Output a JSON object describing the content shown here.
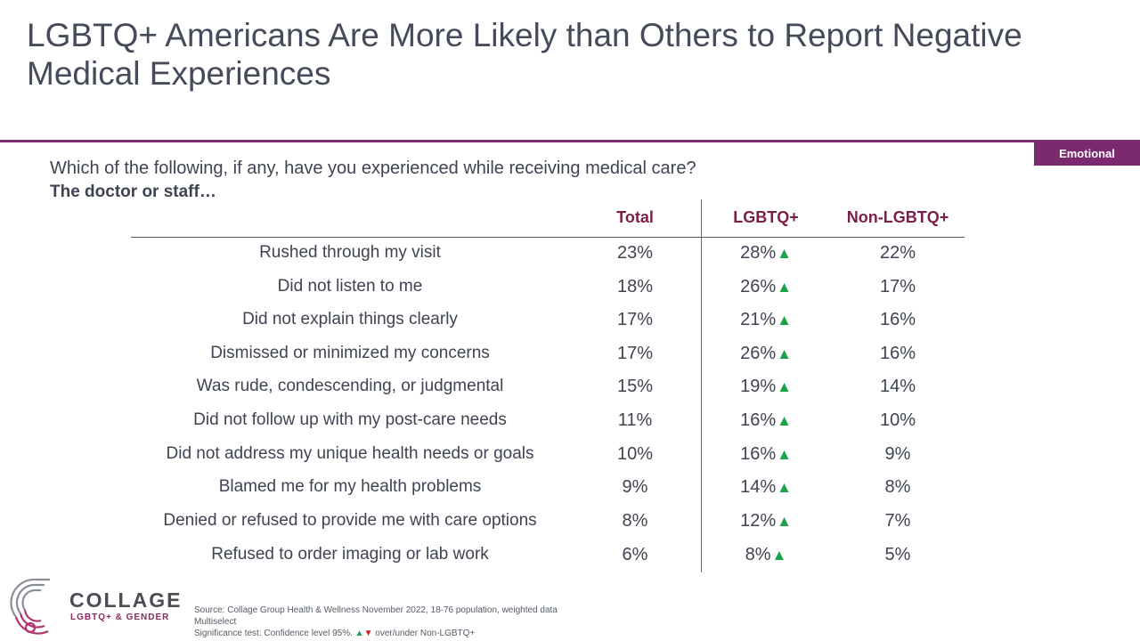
{
  "title": "LGBTQ+ Americans Are More Likely than Others to Report Negative Medical Experiences",
  "tag": "Emotional",
  "question": "Which of the following, if any, have you experienced while receiving medical care?",
  "subquestion": "The doctor or staff…",
  "columns": [
    "Total",
    "LGBTQ+",
    "Non-LGBTQ+"
  ],
  "rows": [
    {
      "label": "Rushed through my visit",
      "total": "23%",
      "lgbtq": "28%",
      "non": "22%",
      "sig": "▲"
    },
    {
      "label": "Did not listen to me",
      "total": "18%",
      "lgbtq": "26%",
      "non": "17%",
      "sig": "▲"
    },
    {
      "label": "Did not explain things clearly",
      "total": "17%",
      "lgbtq": "21%",
      "non": "16%",
      "sig": "▲"
    },
    {
      "label": "Dismissed or minimized my concerns",
      "total": "17%",
      "lgbtq": "26%",
      "non": "16%",
      "sig": "▲"
    },
    {
      "label": "Was rude, condescending, or judgmental",
      "total": "15%",
      "lgbtq": "19%",
      "non": "14%",
      "sig": "▲"
    },
    {
      "label": "Did not follow up with my post-care needs",
      "total": "11%",
      "lgbtq": "16%",
      "non": "10%",
      "sig": "▲"
    },
    {
      "label": "Did not address my unique health needs or goals",
      "total": "10%",
      "lgbtq": "16%",
      "non": "9%",
      "sig": "▲"
    },
    {
      "label": "Blamed me for my health problems",
      "total": "9%",
      "lgbtq": "14%",
      "non": "8%",
      "sig": "▲"
    },
    {
      "label": "Denied or refused to provide me with care options",
      "total": "8%",
      "lgbtq": "12%",
      "non": "7%",
      "sig": "▲"
    },
    {
      "label": "Refused to order imaging or lab work",
      "total": "6%",
      "lgbtq": "8%",
      "non": "5%",
      "sig": "▲"
    }
  ],
  "brand": {
    "name": "COLLAGE",
    "sub": "LGBTQ+ & GENDER"
  },
  "footer": {
    "source": "Source: Collage Group Health & Wellness November 2022, 18-76 population, weighted data",
    "multiselect": "Multiselect",
    "sig_prefix": "Significance test: Confidence level 95%.",
    "sig_up": "▲",
    "sig_down": "▼",
    "sig_suffix": "over/under Non-LGBTQ+"
  },
  "colors": {
    "accent": "#7b2a6f",
    "header_text": "#7a1f48",
    "sig_up": "#1aa34a",
    "sig_down": "#d11f2c"
  }
}
